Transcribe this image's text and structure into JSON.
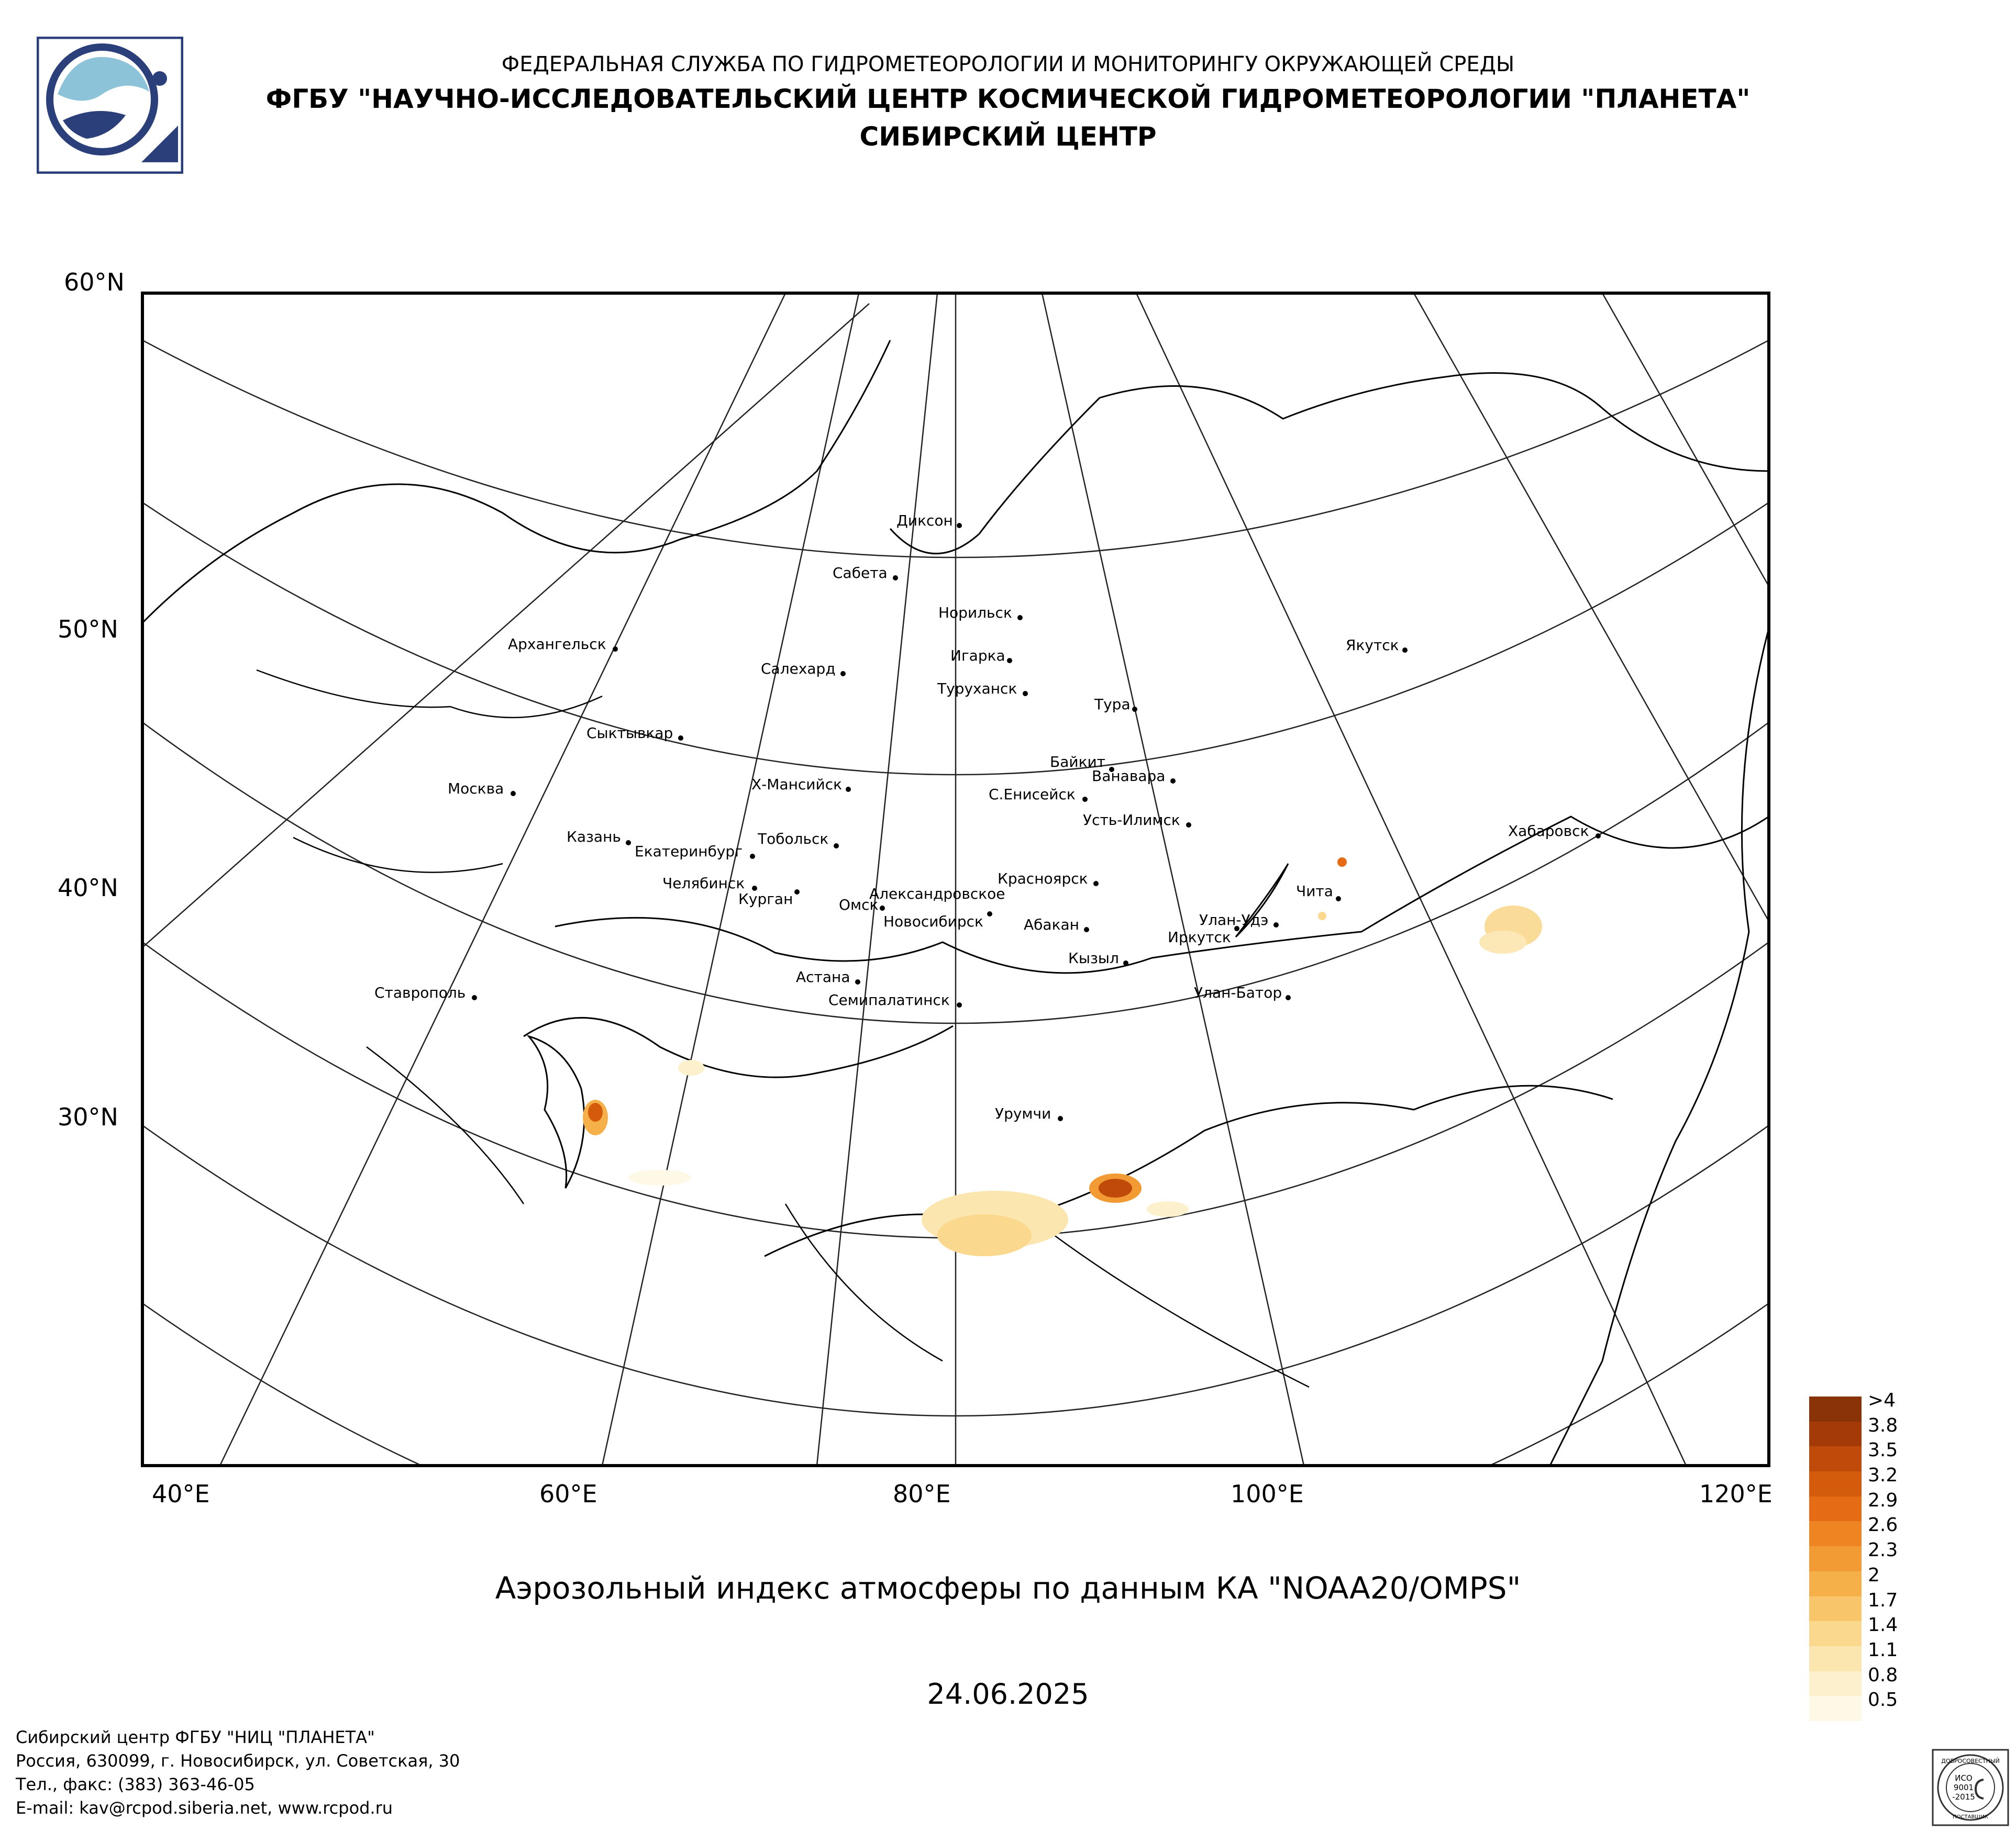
{
  "header": {
    "line1": "ФЕДЕРАЛЬНАЯ СЛУЖБА ПО ГИДРОМЕТЕОРОЛОГИИ И МОНИТОРИНГУ ОКРУЖАЮЩЕЙ СРЕДЫ",
    "line2": "ФГБУ \"НАУЧНО-ИССЛЕДОВАТЕЛЬСКИЙ ЦЕНТР КОСМИЧЕСКОЙ ГИДРОМЕТЕОРОЛОГИИ \"ПЛАНЕТА\"",
    "line3": "СИБИРСКИЙ ЦЕНТР"
  },
  "map": {
    "title": "Аэрозольный индекс атмосферы по данным КА \"NOAA20/OMPS\"",
    "date": "24.06.2025",
    "lat_labels": [
      "60°N",
      "50°N",
      "40°N",
      "30°N"
    ],
    "lon_labels": [
      "40°E",
      "60°E",
      "80°E",
      "100°E",
      "120°E"
    ],
    "cities": [
      "Диксон",
      "Сабета",
      "Норильск",
      "Игарка",
      "Салехард",
      "Туруханск",
      "Тура",
      "Якутск",
      "Архангельск",
      "Сыктывкар",
      "Байкит",
      "Ванавара",
      "Москва",
      "Х-Мансийск",
      "С.Енисейск",
      "Усть-Илимск",
      "Казань",
      "Тобольск",
      "Екатеринбург",
      "Хабаровск",
      "Красноярск",
      "Челябинск",
      "Курган",
      "Александровское",
      "Омск",
      "Новосибирск",
      "Абакан",
      "Чита",
      "Улан-Удэ",
      "Иркутск",
      "Кызыл",
      "Астана",
      "Ставрополь",
      "Улан-Батор",
      "Семипалатинск",
      "Урумчи"
    ]
  },
  "legend": {
    "labels": [
      ">4",
      "3.8",
      "3.5",
      "3.2",
      "2.9",
      "2.6",
      "2.3",
      "2",
      "1.7",
      "1.4",
      "1.1",
      "0.8",
      "0.5"
    ],
    "colors": [
      "#8a3208",
      "#a33a08",
      "#c04a0a",
      "#d45a0c",
      "#e56c14",
      "#ee8422",
      "#f29a34",
      "#f5b04a",
      "#f8c56a",
      "#fad88e",
      "#fce6b0",
      "#fdf0cc",
      "#fef8e6"
    ]
  },
  "footer": {
    "line1": "Сибирский центр ФГБУ \"НИЦ \"ПЛАНЕТА\"",
    "line2": "Россия, 630099, г. Новосибирск, ул. Советская, 30",
    "line3": "Тел., факс: (383) 363-46-05",
    "line4": "E-mail: kav@rcpod.siberia.net, www.rcpod.ru"
  },
  "stamp": {
    "top": "ДОБРОСОВЕСТНЫЙ",
    "mid1": "ИСО",
    "mid2": "9001",
    "mid3": "-2015",
    "bottom": "ПОСТАВЩИК"
  }
}
